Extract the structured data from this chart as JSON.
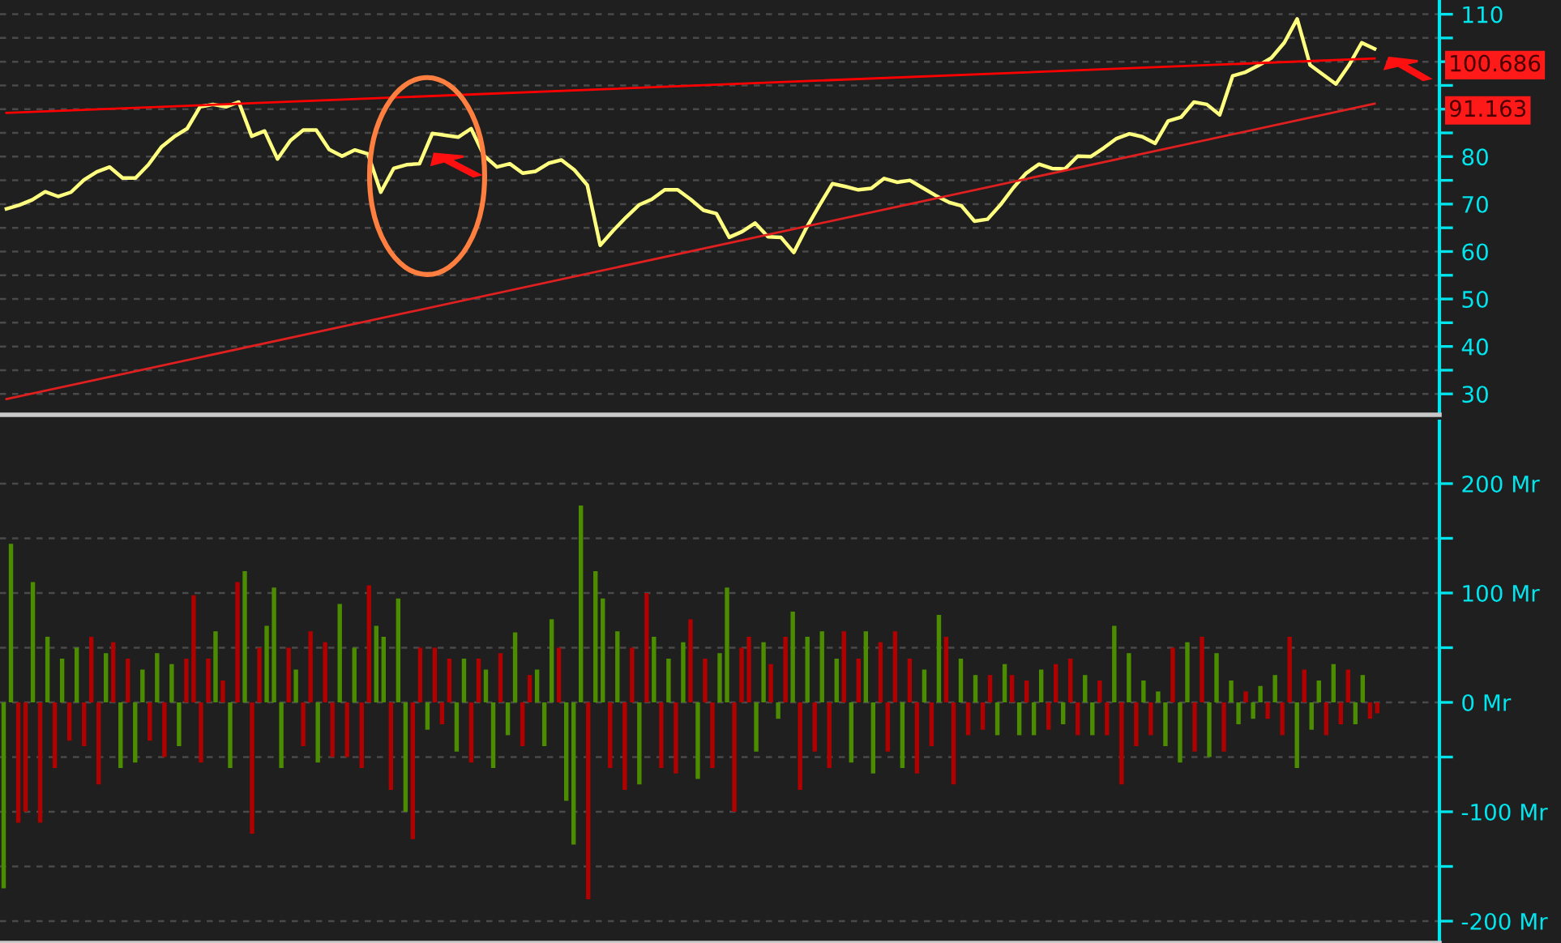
{
  "chart_data": [
    {
      "type": "line",
      "categories": [
        null,
        null,
        null,
        null,
        null,
        null,
        null,
        null,
        null,
        null,
        null,
        null,
        null,
        null,
        null,
        null,
        null,
        null,
        null,
        null,
        null,
        null,
        null,
        null,
        null,
        null,
        null,
        null,
        null,
        null,
        null,
        null,
        null,
        null,
        null,
        null,
        null,
        null,
        null,
        null,
        null,
        null,
        null,
        null,
        null,
        null,
        null,
        null,
        null,
        null,
        null,
        null,
        null,
        null,
        null,
        null,
        null,
        null,
        null,
        null,
        null,
        null,
        null,
        null,
        null,
        null,
        null,
        null,
        null,
        null,
        null,
        null,
        null,
        null,
        null,
        null,
        null,
        null,
        null,
        null,
        null,
        null,
        null,
        null,
        null,
        null,
        null,
        null,
        null,
        null,
        null,
        null,
        null,
        null,
        null,
        null,
        null,
        null,
        null,
        null,
        null,
        null,
        null,
        null,
        null,
        null,
        null
      ],
      "ylim": [
        25.6,
        113
      ],
      "yticks": [
        30,
        {
          "value": 35,
          "label": null
        },
        40,
        {
          "value": 45,
          "label": null
        },
        50,
        {
          "value": 55,
          "label": null
        },
        60,
        {
          "value": 65,
          "label": null
        },
        70,
        {
          "value": 75,
          "label": null
        },
        80,
        {
          "value": 85,
          "label": null
        },
        {
          "value": 90,
          "label": null
        },
        {
          "value": 95,
          "label": null
        },
        {
          "value": 100,
          "label": null
        },
        {
          "value": 105,
          "label": null
        },
        110
      ],
      "tick_labels": "y",
      "grid": "y",
      "series": [
        {
          "color": "#ffff80",
          "values": [
            69,
            69.8,
            70.9,
            72.6,
            71.6,
            72.5,
            75.1,
            76.8,
            77.8,
            75.5,
            75.5,
            78.3,
            82,
            84.2,
            85.9,
            90.5,
            91,
            90.5,
            91.5,
            84.3,
            85.4,
            79.5,
            83.4,
            85.6,
            85.6,
            81.5,
            80.1,
            81.4,
            80.6,
            72.5,
            77.5,
            78.3,
            78.5,
            84.9,
            84.5,
            84.1,
            85.9,
            80.2,
            77.8,
            78.5,
            76.5,
            76.9,
            78.6,
            79.3,
            77.2,
            74,
            61.3,
            64.4,
            67.2,
            69.8,
            71,
            73,
            73,
            71,
            68.7,
            68,
            63,
            64.2,
            66,
            63.1,
            63,
            59.8,
            65.1,
            69.8,
            74.3,
            73.7,
            73,
            73.3,
            75.4,
            74.6,
            75,
            73.4,
            71.8,
            70.4,
            69.6,
            66.4,
            66.8,
            69.8,
            73.4,
            76.5,
            78.4,
            77.5,
            77.4,
            80.1,
            80,
            81.8,
            83.8,
            84.8,
            84.2,
            82.8,
            87.5,
            88.3,
            91.5,
            91,
            88.8,
            97,
            97.8,
            99.2,
            100.8,
            104,
            109,
            99.3,
            97.3,
            95.3,
            99.2,
            104,
            102.7
          ]
        },
        {
          "color": "#ff0000",
          "values": [
            89.2,
            null,
            null,
            null,
            null,
            null,
            null,
            null,
            null,
            null,
            null,
            null,
            null,
            null,
            null,
            null,
            null,
            null,
            null,
            null,
            null,
            null,
            null,
            null,
            null,
            null,
            null,
            null,
            null,
            null,
            null,
            null,
            null,
            null,
            null,
            null,
            null,
            null,
            null,
            null,
            null,
            null,
            null,
            null,
            null,
            null,
            null,
            null,
            null,
            null,
            null,
            null,
            null,
            null,
            null,
            null,
            null,
            null,
            null,
            null,
            null,
            null,
            null,
            null,
            null,
            null,
            null,
            null,
            null,
            null,
            null,
            null,
            null,
            null,
            null,
            null,
            null,
            null,
            null,
            null,
            null,
            null,
            null,
            null,
            null,
            null,
            null,
            null,
            null,
            null,
            null,
            null,
            null,
            null,
            null,
            null,
            null,
            null,
            null,
            null,
            null,
            null,
            null,
            null,
            null,
            null,
            100.686
          ]
        },
        {
          "color": "#e02020",
          "values": [
            28.9,
            null,
            null,
            null,
            null,
            null,
            null,
            null,
            null,
            null,
            null,
            null,
            null,
            null,
            null,
            null,
            null,
            null,
            null,
            null,
            null,
            null,
            null,
            null,
            null,
            null,
            null,
            null,
            null,
            null,
            null,
            null,
            null,
            null,
            null,
            null,
            null,
            null,
            null,
            null,
            null,
            null,
            null,
            null,
            null,
            null,
            null,
            null,
            null,
            null,
            null,
            null,
            null,
            null,
            null,
            null,
            null,
            null,
            null,
            null,
            null,
            null,
            null,
            null,
            null,
            null,
            null,
            null,
            null,
            null,
            null,
            null,
            null,
            null,
            null,
            null,
            null,
            null,
            null,
            null,
            null,
            null,
            null,
            null,
            null,
            null,
            null,
            null,
            null,
            null,
            null,
            null,
            null,
            null,
            null,
            null,
            null,
            null,
            null,
            null,
            null,
            null,
            null,
            null,
            null,
            null,
            91.163
          ]
        }
      ],
      "annotations": [
        "100.686",
        "91.163"
      ]
    },
    {
      "type": "bar",
      "categories": [
        null,
        null,
        null,
        null,
        null,
        null,
        null,
        null,
        null,
        null,
        null,
        null,
        null,
        null,
        null,
        null,
        null,
        null,
        null,
        null,
        null,
        null,
        null,
        null,
        null,
        null,
        null,
        null,
        null,
        null,
        null,
        null,
        null,
        null,
        null,
        null,
        null,
        null,
        null,
        null,
        null,
        null,
        null,
        null,
        null,
        null,
        null,
        null,
        null,
        null,
        null,
        null,
        null,
        null,
        null,
        null,
        null,
        null,
        null,
        null,
        null,
        null,
        null,
        null,
        null,
        null,
        null,
        null,
        null,
        null,
        null,
        null,
        null,
        null,
        null,
        null,
        null,
        null,
        null,
        null,
        null,
        null,
        null,
        null,
        null,
        null,
        null,
        null,
        null,
        null,
        null,
        null,
        null,
        null,
        null,
        null,
        null,
        null,
        null,
        null,
        null,
        null,
        null,
        null,
        null,
        null,
        null,
        null,
        null,
        null,
        null,
        null,
        null,
        null,
        null,
        null,
        null,
        null,
        null,
        null,
        null,
        null,
        null,
        null,
        null,
        null,
        null,
        null,
        null,
        null,
        null,
        null,
        null,
        null,
        null,
        null,
        null,
        null,
        null,
        null,
        null,
        null,
        null,
        null,
        null,
        null,
        null,
        null,
        null,
        null,
        null,
        null,
        null,
        null,
        null,
        null,
        null,
        null,
        null,
        null,
        null,
        null,
        null,
        null,
        null,
        null,
        null,
        null,
        null,
        null,
        null,
        null,
        null,
        null,
        null,
        null,
        null,
        null,
        null,
        null,
        null,
        null,
        null,
        null,
        null,
        null,
        null,
        null,
        null,
        null,
        null,
        null,
        null,
        null,
        null,
        null,
        null
      ],
      "ylim": [
        -220,
        257
      ],
      "yticks": [
        {
          "value": -200,
          "label": "-200 Mr"
        },
        {
          "value": -150,
          "label": null
        },
        {
          "value": -100,
          "label": "-100 Mr"
        },
        {
          "value": -50,
          "label": null
        },
        {
          "value": 0,
          "label": "0 Mr"
        },
        {
          "value": 50,
          "label": null
        },
        {
          "value": 100,
          "label": "100 Mr"
        },
        {
          "value": 150,
          "label": null
        },
        {
          "value": 200,
          "label": "200 Mr"
        }
      ],
      "tick_labels": "y",
      "grid": "y",
      "values": [
        -170,
        145,
        -110,
        -100,
        110,
        -110,
        60,
        -60,
        40,
        -35,
        50,
        -40,
        60,
        -75,
        45,
        55,
        -60,
        40,
        -55,
        30,
        -35,
        45,
        -50,
        35,
        -40,
        40,
        98,
        -55,
        40,
        65,
        20,
        -60,
        110,
        120,
        -120,
        50,
        70,
        105,
        -60,
        50,
        30,
        -40,
        65,
        -55,
        55,
        -50,
        90,
        -50,
        50,
        -60,
        107,
        70,
        60,
        -80,
        95,
        -100,
        -125,
        50,
        -25,
        50,
        -20,
        40,
        -45,
        40,
        -55,
        40,
        30,
        -60,
        45,
        -30,
        64,
        -40,
        25,
        30,
        -40,
        76,
        50,
        -90,
        -130,
        180,
        -180,
        120,
        95,
        -60,
        65,
        -80,
        50,
        -75,
        100,
        60,
        -60,
        40,
        -65,
        55,
        76,
        -70,
        40,
        -60,
        45,
        105,
        -100,
        50,
        60,
        -45,
        55,
        35,
        -15,
        60,
        83,
        -80,
        60,
        -45,
        65,
        -60,
        40,
        65,
        -55,
        40,
        65,
        -65,
        55,
        -45,
        65,
        -60,
        40,
        -65,
        30,
        -40,
        80,
        60,
        -75,
        40,
        -30,
        25,
        -25,
        25,
        -30,
        35,
        25,
        -30,
        20,
        -30,
        30,
        -25,
        35,
        -20,
        40,
        -30,
        25,
        -30,
        20,
        -30,
        70,
        -75,
        45,
        -40,
        20,
        -30,
        10,
        -40,
        50,
        -55,
        55,
        -45,
        60,
        -50,
        45,
        -45,
        20,
        -20,
        10,
        -15,
        15,
        -15,
        25,
        -30,
        60,
        -60,
        30,
        -25,
        20,
        -30,
        35,
        -20,
        30,
        -20,
        25,
        -15,
        -10,
        null,
        null,
        null,
        null,
        null,
        null,
        null,
        null
      ],
      "colors": [
        "#4c8c00",
        "#4c8c00",
        "#b00000",
        "#b00000",
        "#4c8c00",
        "#b00000",
        "#4c8c00",
        "#b00000",
        "#4c8c00",
        "#b00000",
        "#4c8c00",
        "#b00000",
        "#b00000",
        "#b00000",
        "#4c8c00",
        "#b00000",
        "#4c8c00",
        "#b00000",
        "#4c8c00",
        "#4c8c00",
        "#b00000",
        "#4c8c00",
        "#b00000",
        "#4c8c00",
        "#4c8c00",
        "#b00000",
        "#b00000",
        "#b00000",
        "#b00000",
        "#4c8c00",
        "#b00000",
        "#4c8c00",
        "#b00000",
        "#4c8c00",
        "#b00000",
        "#b00000",
        "#4c8c00",
        "#4c8c00",
        "#4c8c00",
        "#b00000",
        "#4c8c00",
        "#b00000",
        "#b00000",
        "#4c8c00",
        "#b00000",
        "#b00000",
        "#4c8c00",
        "#b00000",
        "#4c8c00",
        "#b00000",
        "#b00000",
        "#4c8c00",
        "#4c8c00",
        "#b00000",
        "#4c8c00",
        "#4c8c00",
        "#b00000",
        "#b00000",
        "#4c8c00",
        "#b00000",
        "#b00000",
        "#b00000",
        "#4c8c00",
        "#4c8c00",
        "#b00000",
        "#b00000",
        "#4c8c00",
        "#4c8c00",
        "#b00000",
        "#4c8c00",
        "#4c8c00",
        "#b00000",
        "#b00000",
        "#4c8c00",
        "#4c8c00",
        "#4c8c00",
        "#b00000",
        "#4c8c00",
        "#4c8c00",
        "#4c8c00",
        "#b00000",
        "#4c8c00",
        "#4c8c00",
        "#b00000",
        "#4c8c00",
        "#b00000",
        "#b00000",
        "#4c8c00",
        "#b00000",
        "#4c8c00",
        "#b00000",
        "#4c8c00",
        "#b00000",
        "#4c8c00",
        "#b00000",
        "#4c8c00",
        "#b00000",
        "#b00000",
        "#4c8c00",
        "#4c8c00",
        "#b00000",
        "#b00000",
        "#b00000",
        "#4c8c00",
        "#4c8c00",
        "#b00000",
        "#4c8c00",
        "#b00000",
        "#4c8c00",
        "#b00000",
        "#4c8c00",
        "#b00000",
        "#4c8c00",
        "#b00000",
        "#4c8c00",
        "#b00000",
        "#4c8c00",
        "#b00000",
        "#4c8c00",
        "#4c8c00",
        "#b00000",
        "#b00000",
        "#b00000",
        "#4c8c00",
        "#b00000",
        "#b00000",
        "#4c8c00",
        "#b00000",
        "#4c8c00",
        "#b00000",
        "#b00000",
        "#4c8c00",
        "#b00000",
        "#4c8c00",
        "#b00000",
        "#b00000",
        "#4c8c00",
        "#4c8c00",
        "#b00000",
        "#4c8c00",
        "#b00000",
        "#4c8c00",
        "#4c8c00",
        "#b00000",
        "#b00000",
        "#4c8c00",
        "#b00000",
        "#b00000",
        "#4c8c00",
        "#4c8c00",
        "#b00000",
        "#b00000",
        "#4c8c00",
        "#b00000",
        "#4c8c00",
        "#b00000",
        "#4c8c00",
        "#b00000",
        "#4c8c00",
        "#4c8c00",
        "#b00000",
        "#4c8c00",
        "#4c8c00",
        "#b00000",
        "#b00000",
        "#4c8c00",
        "#4c8c00",
        "#b00000",
        "#4c8c00",
        "#4c8c00",
        "#b00000",
        "#4c8c00",
        "#4c8c00",
        "#b00000",
        "#4c8c00",
        "#b00000",
        "#b00000",
        "#4c8c00",
        "#b00000",
        "#4c8c00",
        "#4c8c00",
        "#b00000",
        "#4c8c00",
        "#b00000",
        "#b00000",
        "#4c8c00",
        "#4c8c00",
        "#b00000",
        "#b00000",
        null,
        null,
        null,
        null,
        null,
        null,
        null,
        null
      ]
    }
  ]
}
